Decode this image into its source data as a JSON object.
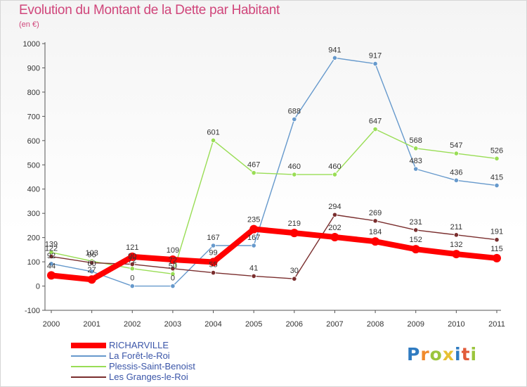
{
  "title": "Evolution du Montant de la Dette par Habitant",
  "unit": "(en €)",
  "brand": {
    "letters": [
      "P",
      "r",
      "o",
      "x",
      "i",
      "t",
      "i"
    ],
    "colors": [
      "#2f7bc1",
      "#f08a2c",
      "#9bc53d",
      "#e8c033",
      "#2f7bc1",
      "#e25b3a",
      "#9bc53d"
    ]
  },
  "chart_data": {
    "type": "line",
    "title": "Evolution du Montant de la Dette par Habitant",
    "ylabel": "(en €)",
    "ylim": [
      -100,
      1000
    ],
    "yticks": [
      -100,
      0,
      100,
      200,
      300,
      400,
      500,
      600,
      700,
      800,
      900,
      1000
    ],
    "categories": [
      "2000",
      "2001",
      "2002",
      "2003",
      "2004",
      "2005",
      "2006",
      "2007",
      "2008",
      "2009",
      "2010",
      "2011"
    ],
    "grid": false,
    "legend": "bottom-left",
    "series": [
      {
        "name": "RICHARVILLE",
        "color": "#ff0000",
        "values": [
          44,
          27,
          121,
          109,
          99,
          235,
          219,
          202,
          184,
          152,
          132,
          115
        ],
        "labels": [
          "44",
          "27",
          "121",
          "109",
          "99",
          "235",
          "219",
          "202",
          "184",
          "152",
          "132",
          "115"
        ]
      },
      {
        "name": "La Forêt-le-Roi",
        "color": "#6699cc",
        "values": [
          92,
          60,
          0,
          0,
          167,
          167,
          688,
          941,
          917,
          483,
          436,
          415
        ],
        "labels": [
          "92",
          "60",
          "0",
          "0",
          "167",
          "167",
          "688",
          "941",
          "917",
          "483",
          "436",
          "415"
        ]
      },
      {
        "name": "Plessis-Saint-Benoist",
        "color": "#99dd55",
        "values": [
          139,
          103,
          72,
          50,
          601,
          467,
          460,
          460,
          647,
          568,
          547,
          526
        ],
        "labels": [
          "139",
          "103",
          "72",
          "50",
          "601",
          "467",
          "460",
          "460",
          "647",
          "568",
          "547",
          "526"
        ]
      },
      {
        "name": "Les Granges-le-Roi",
        "color": "#7a2e2e",
        "values": [
          122,
          96,
          90,
          72,
          55,
          41,
          30,
          294,
          269,
          231,
          211,
          191
        ],
        "labels": [
          "122",
          "96",
          "90",
          "72",
          "55",
          "41",
          "30",
          "294",
          "269",
          "231",
          "211",
          "191"
        ]
      }
    ]
  }
}
